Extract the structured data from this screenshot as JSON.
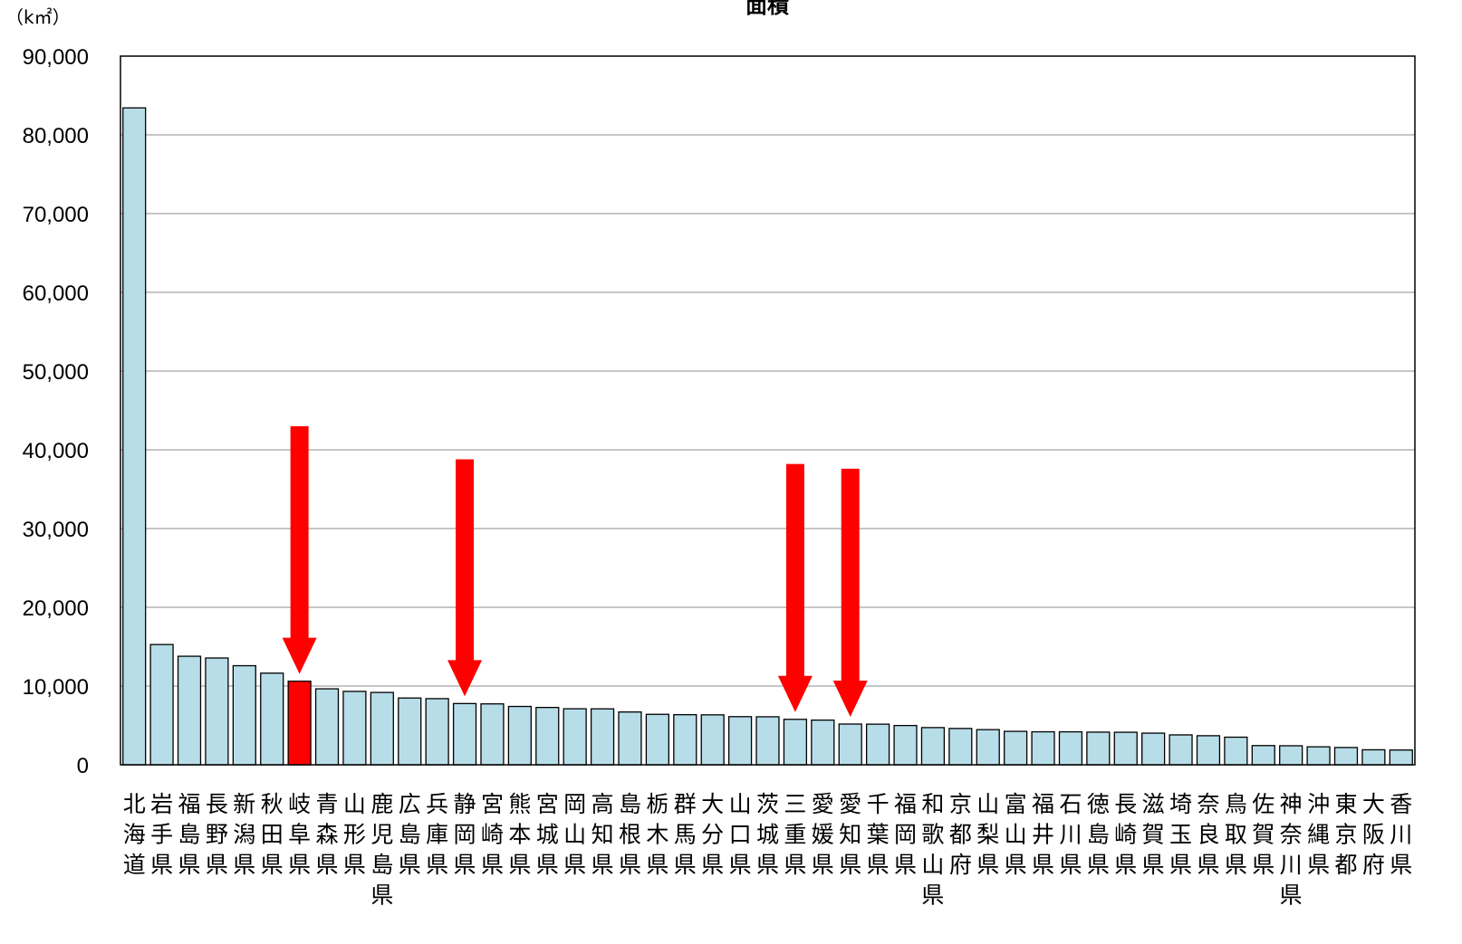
{
  "chart_data": {
    "type": "bar",
    "title": "面積",
    "unit_label": "（k㎡）",
    "ylim": [
      0,
      90000
    ],
    "yticks": [
      "0",
      "10,000",
      "20,000",
      "30,000",
      "40,000",
      "50,000",
      "60,000",
      "70,000",
      "80,000",
      "90,000"
    ],
    "grid": true,
    "categories": [
      "北海道",
      "岩手県",
      "福島県",
      "長野県",
      "新潟県",
      "秋田県",
      "岐阜県",
      "青森県",
      "山形県",
      "鹿児島県",
      "広島県",
      "兵庫県",
      "静岡県",
      "宮崎県",
      "熊本県",
      "宮城県",
      "岡山県",
      "高知県",
      "島根県",
      "栃木県",
      "群馬県",
      "大分県",
      "山口県",
      "茨城県",
      "三重県",
      "愛媛県",
      "愛知県",
      "千葉県",
      "福岡県",
      "和歌山県",
      "京都府",
      "山梨県",
      "富山県",
      "福井県",
      "石川県",
      "徳島県",
      "長崎県",
      "滋賀県",
      "埼玉県",
      "奈良県",
      "鳥取県",
      "佐賀県",
      "神奈川県",
      "沖縄県",
      "東京都",
      "大阪府",
      "香川県"
    ],
    "values": [
      83424,
      15275,
      13784,
      13562,
      12584,
      11638,
      10621,
      9646,
      9323,
      9187,
      8480,
      8401,
      7777,
      7735,
      7409,
      7282,
      7114,
      7104,
      6708,
      6408,
      6362,
      6341,
      6113,
      6097,
      5774,
      5676,
      5173,
      5158,
      4987,
      4725,
      4612,
      4465,
      4248,
      4191,
      4186,
      4147,
      4131,
      4017,
      3798,
      3691,
      3507,
      2441,
      2416,
      2282,
      2194,
      1905,
      1877
    ],
    "bar_color": "#b7dde8",
    "highlight_color": "#ff0000",
    "highlighted_categories": [
      "岐阜県"
    ],
    "arrow_color": "#ff0000",
    "arrow_targets": [
      "岐阜県",
      "静岡県",
      "三重県",
      "愛知県"
    ]
  }
}
